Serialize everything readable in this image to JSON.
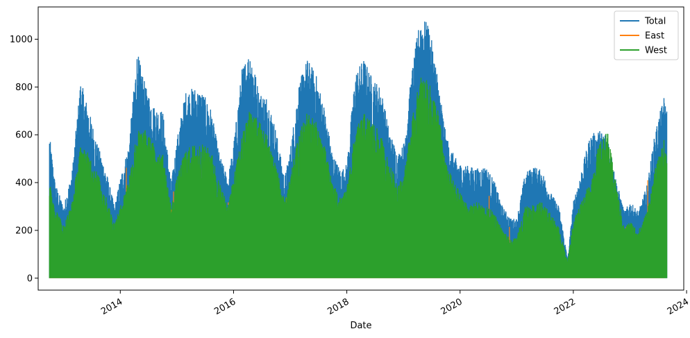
{
  "chart_data": {
    "type": "line",
    "title": "",
    "xlabel": "Date",
    "ylabel": "",
    "xlim": [
      2012.55,
      2023.95
    ],
    "ylim": [
      -50,
      1135
    ],
    "x_ticks": [
      {
        "value": 2014,
        "label": "2014"
      },
      {
        "value": 2016,
        "label": "2016"
      },
      {
        "value": 2018,
        "label": "2018"
      },
      {
        "value": 2020,
        "label": "2020"
      },
      {
        "value": 2022,
        "label": "2022"
      },
      {
        "value": 2024,
        "label": "2024"
      }
    ],
    "y_ticks": [
      0,
      200,
      400,
      600,
      800,
      1000
    ],
    "grid": false,
    "legend_position": "upper right",
    "series": [
      {
        "name": "Total",
        "color": "#1f77b4",
        "x": [
          2012.75,
          2012.85,
          2013.0,
          2013.15,
          2013.3,
          2013.45,
          2013.6,
          2013.75,
          2013.9,
          2014.0,
          2014.15,
          2014.3,
          2014.45,
          2014.6,
          2014.75,
          2014.9,
          2015.0,
          2015.15,
          2015.3,
          2015.45,
          2015.6,
          2015.75,
          2015.9,
          2016.0,
          2016.15,
          2016.3,
          2016.45,
          2016.6,
          2016.75,
          2016.9,
          2017.0,
          2017.15,
          2017.3,
          2017.45,
          2017.6,
          2017.75,
          2017.9,
          2018.0,
          2018.15,
          2018.3,
          2018.45,
          2018.6,
          2018.75,
          2018.9,
          2019.0,
          2019.15,
          2019.3,
          2019.45,
          2019.6,
          2019.75,
          2019.9,
          2020.0,
          2020.15,
          2020.3,
          2020.45,
          2020.6,
          2020.75,
          2020.9,
          2021.0,
          2021.15,
          2021.3,
          2021.45,
          2021.6,
          2021.75,
          2021.9,
          2022.0,
          2022.15,
          2022.3,
          2022.45,
          2022.6,
          2022.75,
          2022.9,
          2023.0,
          2023.15,
          2023.3,
          2023.45,
          2023.6,
          2023.65
        ],
        "y": [
          600,
          400,
          300,
          450,
          830,
          700,
          560,
          450,
          300,
          420,
          560,
          950,
          800,
          720,
          700,
          400,
          580,
          780,
          800,
          780,
          710,
          520,
          420,
          560,
          880,
          960,
          780,
          760,
          620,
          420,
          540,
          810,
          920,
          860,
          720,
          520,
          450,
          480,
          860,
          920,
          840,
          800,
          620,
          520,
          560,
          870,
          1100,
          1060,
          860,
          600,
          510,
          480,
          470,
          460,
          470,
          410,
          300,
          250,
          250,
          440,
          470,
          450,
          360,
          300,
          80,
          320,
          460,
          600,
          620,
          610,
          420,
          280,
          320,
          280,
          390,
          620,
          760,
          710
        ]
      },
      {
        "name": "East",
        "color": "#ff7f0e",
        "x": [
          2012.75,
          2013.0,
          2013.33,
          2013.6,
          2013.9,
          2014.33,
          2014.6,
          2014.9,
          2015.33,
          2015.6,
          2015.9,
          2016.33,
          2016.6,
          2016.9,
          2017.33,
          2017.6,
          2017.9,
          2018.33,
          2018.6,
          2018.9,
          2019.33,
          2019.6,
          2019.9,
          2020.33,
          2020.6,
          2020.9,
          2021.33,
          2021.6,
          2021.9,
          2022.33,
          2022.6,
          2022.9,
          2023.33,
          2023.6
        ],
        "y": [
          330,
          230,
          620,
          430,
          300,
          700,
          480,
          420,
          580,
          440,
          330,
          620,
          600,
          330,
          620,
          600,
          330,
          610,
          620,
          340,
          620,
          640,
          360,
          380,
          380,
          200,
          300,
          300,
          160,
          450,
          600,
          220,
          420,
          520
        ]
      },
      {
        "name": "West",
        "color": "#2ca02c",
        "x": [
          2012.75,
          2012.85,
          2013.0,
          2013.15,
          2013.3,
          2013.45,
          2013.6,
          2013.75,
          2013.9,
          2014.0,
          2014.15,
          2014.3,
          2014.45,
          2014.6,
          2014.75,
          2014.9,
          2015.0,
          2015.15,
          2015.3,
          2015.45,
          2015.6,
          2015.75,
          2015.9,
          2016.0,
          2016.15,
          2016.3,
          2016.45,
          2016.6,
          2016.75,
          2016.9,
          2017.0,
          2017.15,
          2017.3,
          2017.45,
          2017.6,
          2017.75,
          2017.9,
          2018.0,
          2018.15,
          2018.3,
          2018.45,
          2018.6,
          2018.75,
          2018.9,
          2019.0,
          2019.15,
          2019.3,
          2019.45,
          2019.6,
          2019.75,
          2019.9,
          2020.0,
          2020.15,
          2020.3,
          2020.45,
          2020.6,
          2020.75,
          2020.9,
          2021.0,
          2021.15,
          2021.3,
          2021.45,
          2021.6,
          2021.75,
          2021.9,
          2022.0,
          2022.15,
          2022.3,
          2022.45,
          2022.6,
          2022.75,
          2022.9,
          2023.0,
          2023.15,
          2023.3,
          2023.45,
          2023.6,
          2023.65
        ],
        "y": [
          400,
          300,
          220,
          320,
          560,
          520,
          440,
          340,
          230,
          300,
          420,
          620,
          620,
          560,
          520,
          300,
          420,
          540,
          560,
          560,
          540,
          400,
          310,
          420,
          600,
          720,
          660,
          600,
          480,
          320,
          420,
          600,
          700,
          660,
          560,
          400,
          330,
          380,
          620,
          690,
          660,
          600,
          480,
          400,
          420,
          660,
          850,
          820,
          720,
          480,
          400,
          360,
          300,
          320,
          300,
          280,
          200,
          160,
          170,
          300,
          310,
          320,
          270,
          210,
          70,
          240,
          330,
          400,
          560,
          620,
          400,
          210,
          240,
          200,
          280,
          460,
          580,
          520
        ]
      }
    ]
  }
}
